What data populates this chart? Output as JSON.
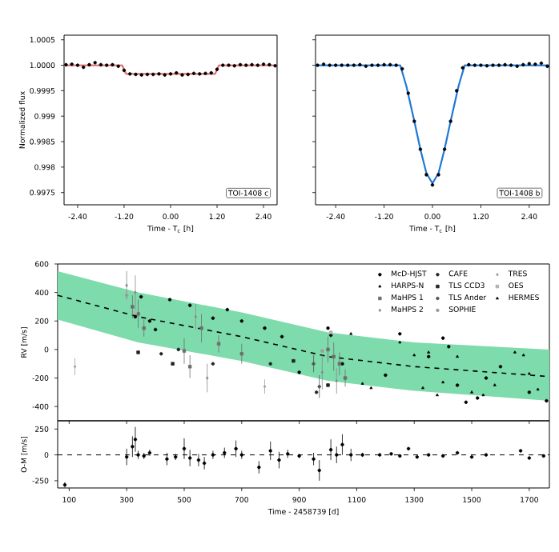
{
  "chart_data": [
    {
      "type": "scatter",
      "xlabel": "Time - T$_{c}$ [h]",
      "ylabel": "Normalized flux",
      "annotations": [
        "TOI-1408 c"
      ],
      "xlim": [
        -2.75,
        2.75
      ],
      "ylim": [
        0.99726,
        1.00059
      ],
      "xticks": [
        {
          "value": -2.4,
          "label": "-2.40"
        },
        {
          "value": -1.2,
          "label": "-1.20"
        },
        {
          "value": 0,
          "label": "0.00"
        },
        {
          "value": 1.2,
          "label": "1.20"
        },
        {
          "value": 2.4,
          "label": "2.40"
        }
      ],
      "yticks": [
        0.9975,
        0.998,
        0.9985,
        0.999,
        0.9995,
        {
          "value": 1.0,
          "label": "1.0000"
        },
        1.0005
      ],
      "series": [
        {
          "type": "scatter",
          "marker": "circle",
          "color": "#000000",
          "x": [
            -2.7,
            -2.55,
            -2.4,
            -2.25,
            -2.1,
            -1.95,
            -1.8,
            -1.65,
            -1.5,
            -1.35,
            -1.2,
            -1.05,
            -0.9,
            -0.75,
            -0.6,
            -0.45,
            -0.3,
            -0.15,
            0,
            0.15,
            0.3,
            0.45,
            0.6,
            0.75,
            0.9,
            1.05,
            1.2,
            1.35,
            1.5,
            1.65,
            1.8,
            1.95,
            2.1,
            2.25,
            2.4,
            2.55,
            2.7
          ],
          "values": [
            1.00001,
            1.00002,
            1.0,
            0.99996,
            1.00001,
            1.00005,
            1.00001,
            1.0,
            1.00001,
            0.99998,
            0.9999,
            0.99983,
            0.99982,
            0.99981,
            0.99982,
            0.99982,
            0.99983,
            0.99981,
            0.99983,
            0.99985,
            0.99981,
            0.99982,
            0.99984,
            0.99983,
            0.99984,
            0.99985,
            0.99992,
            1.0,
            1.0,
            0.99999,
            1.00001,
            1.0,
            1.00001,
            1.0,
            1.00002,
            1.00001,
            0.99999
          ]
        },
        {
          "type": "line",
          "color": "#e07272",
          "x": [
            -2.75,
            -1.25,
            -1.15,
            1.15,
            1.25,
            2.75
          ],
          "values": [
            1.0,
            1.0,
            0.99983,
            0.99983,
            1.0,
            1.0
          ]
        }
      ]
    },
    {
      "type": "scatter",
      "xlabel": "Time - T$_{c}$ [h]",
      "annotations": [
        "TOI-1408 b"
      ],
      "tick_labels": "x",
      "xlim": [
        -2.9,
        2.9
      ],
      "ylim": [
        0.99726,
        1.00059
      ],
      "xticks": [
        {
          "value": -2.4,
          "label": "-2.40"
        },
        {
          "value": -1.2,
          "label": "-1.20"
        },
        {
          "value": 0,
          "label": "0.00"
        },
        {
          "value": 1.2,
          "label": "1.20"
        },
        {
          "value": 2.4,
          "label": "2.40"
        }
      ],
      "yticks": [
        {
          "value": 0.9975,
          "label": null
        },
        {
          "value": 0.998,
          "label": null
        },
        {
          "value": 0.9985,
          "label": null
        },
        {
          "value": 0.999,
          "label": null
        },
        {
          "value": 0.9995,
          "label": null
        },
        {
          "value": 1.0,
          "label": null
        },
        {
          "value": 1.0005,
          "label": null
        }
      ],
      "series": [
        {
          "type": "scatter",
          "marker": "circle",
          "color": "#000000",
          "x": [
            -2.85,
            -2.7,
            -2.55,
            -2.4,
            -2.25,
            -2.1,
            -1.95,
            -1.8,
            -1.65,
            -1.5,
            -1.35,
            -1.2,
            -1.05,
            -0.9,
            -0.75,
            -0.6,
            -0.45,
            -0.3,
            -0.15,
            0,
            0.15,
            0.3,
            0.45,
            0.6,
            0.75,
            0.9,
            1.05,
            1.2,
            1.35,
            1.5,
            1.65,
            1.8,
            1.95,
            2.1,
            2.25,
            2.4,
            2.55,
            2.7,
            2.85
          ],
          "values": [
            1.0,
            1.00002,
            1.0,
            1.0,
            1.0,
            1.0,
            1.0,
            1.00001,
            0.99998,
            1.0,
            1.0,
            1.00001,
            1.00001,
            1.0,
            0.99993,
            0.99945,
            0.9989,
            0.99835,
            0.99785,
            0.99765,
            0.99785,
            0.99835,
            0.9989,
            0.9995,
            0.99995,
            1.00001,
            1.0,
            1.0,
            0.99999,
            1.0,
            1.0,
            1.00001,
            1.0,
            0.99998,
            1.00001,
            1.00003,
            1.00002,
            1.00004,
            0.99998
          ]
        },
        {
          "type": "line",
          "color": "#1e78d8",
          "x": [
            -2.9,
            -0.8,
            -0.65,
            -0.45,
            -0.3,
            -0.15,
            0,
            0.15,
            0.3,
            0.45,
            0.65,
            0.8,
            2.9
          ],
          "values": [
            1.0,
            1.0,
            0.9996,
            0.9989,
            0.99835,
            0.99788,
            0.99768,
            0.99788,
            0.99835,
            0.9989,
            0.9996,
            1.0,
            1.0
          ]
        }
      ]
    },
    {
      "type": "scatter",
      "ylabel": "RV [m/s]",
      "legend": "top right",
      "tick_labels": "y",
      "xlim": [
        60,
        1770
      ],
      "ylim": [
        -500,
        600
      ],
      "xticks": [
        100,
        300,
        500,
        700,
        900,
        1100,
        1300,
        1500,
        1700
      ],
      "yticks": [
        -400,
        -200,
        0,
        200,
        400,
        600
      ],
      "series": [
        {
          "type": "line",
          "line_style": "dashed",
          "color": "#000000",
          "x": [
            60,
            340,
            700,
            1000,
            1300,
            1770
          ],
          "values": [
            380,
            230,
            90,
            -50,
            -120,
            -190
          ],
          "lower": [
            210,
            50,
            -80,
            -220,
            -290,
            -360
          ],
          "upper": [
            550,
            400,
            260,
            120,
            50,
            0
          ]
        },
        {
          "name": "McD-HJST",
          "marker": "circle",
          "color": "#000000",
          "x": [
            330,
            350,
            380,
            400,
            450,
            520,
            600,
            650,
            700,
            780,
            840,
            900,
            1000,
            1010,
            1050,
            1200,
            1250,
            1350,
            1400,
            1420,
            1450,
            1480,
            1520,
            1550,
            1600,
            1700,
            1760
          ],
          "values": [
            230,
            370,
            200,
            140,
            350,
            310,
            220,
            280,
            200,
            150,
            90,
            -160,
            150,
            100,
            -100,
            -180,
            110,
            -50,
            80,
            20,
            -250,
            -370,
            -340,
            -200,
            -120,
            -300,
            -360
          ]
        },
        {
          "name": "HARPS-N",
          "marker": "triangle",
          "color": "#000000",
          "x": [
            1080,
            1120,
            1150,
            1300,
            1330,
            1380,
            1400,
            1450,
            1500,
            1540,
            1580,
            1680,
            1700
          ],
          "values": [
            110,
            -240,
            -270,
            -40,
            -270,
            -320,
            -230,
            -50,
            -300,
            -320,
            -250,
            -40,
            -170
          ]
        },
        {
          "name": "MaHPS 1",
          "marker": "square",
          "color": "#6e6e6e",
          "x": [
            320,
            340,
            360,
            500,
            520,
            560,
            620,
            700,
            1000,
            1020,
            1040,
            1060
          ],
          "values": [
            300,
            250,
            150,
            -10,
            -120,
            150,
            40,
            -30,
            0,
            -50,
            -100,
            -200
          ],
          "errors": [
            80,
            100,
            60,
            90,
            80,
            100,
            60,
            70,
            90,
            100,
            80,
            60
          ]
        },
        {
          "name": "MaHPS 2",
          "marker": "diamond",
          "color": "#8a8a8a",
          "x": [
            300,
            330,
            540,
            580,
            980,
            1030
          ],
          "values": [
            450,
            400,
            230,
            -200,
            -160,
            -220
          ],
          "errors": [
            100,
            120,
            90,
            100,
            120,
            90
          ]
        },
        {
          "name": "CAFE",
          "marker": "circle",
          "color": "#222222",
          "x": [
            420,
            480,
            600,
            800,
            960
          ],
          "values": [
            -30,
            0,
            -100,
            -100,
            -300
          ]
        },
        {
          "name": "TLS CCD3",
          "marker": "square",
          "color": "#222222",
          "x": [
            340,
            460,
            880,
            1000
          ],
          "values": [
            -20,
            -100,
            -80,
            -250
          ]
        },
        {
          "name": "TLS Ander",
          "marker": "circle",
          "color": "#555555",
          "x": [
            950,
            970
          ],
          "values": [
            -100,
            -260
          ],
          "errors": [
            60,
            80
          ]
        },
        {
          "name": "SOPHIE",
          "marker": "circle",
          "color": "#9a9a9a",
          "x": [
            300,
            980
          ],
          "values": [
            380,
            -10
          ]
        },
        {
          "name": "TRES",
          "marker": "diamond",
          "color": "#a0a0a0",
          "x": [
            120,
            780
          ],
          "values": [
            -120,
            -260
          ],
          "errors": [
            60,
            50
          ]
        },
        {
          "name": "OES",
          "marker": "square",
          "color": "#b0b0b0",
          "x": [
            330,
            1010
          ],
          "values": [
            260,
            120
          ]
        },
        {
          "name": "HERMES",
          "marker": "triangle",
          "color": "#000000",
          "x": [
            1250,
            1350,
            1650,
            1730
          ],
          "values": [
            50,
            -20,
            -20,
            -280
          ]
        }
      ]
    },
    {
      "type": "scatter",
      "xlabel": "Time - 2458739 [d]",
      "ylabel": "O-M [m/s]",
      "xlim": [
        60,
        1770
      ],
      "ylim": [
        -320,
        330
      ],
      "xticks": [
        100,
        300,
        500,
        700,
        900,
        1100,
        1300,
        1500,
        1700
      ],
      "yticks": [
        -250,
        0,
        250
      ],
      "ref_lines": [
        {
          "axis": "y",
          "value": 0,
          "line_style": "dashed"
        }
      ],
      "series": [
        {
          "type": "scatter",
          "marker": "circle",
          "color": "#000000",
          "x": [
            85,
            300,
            320,
            330,
            340,
            360,
            380,
            440,
            470,
            500,
            520,
            550,
            570,
            600,
            640,
            680,
            700,
            760,
            800,
            830,
            860,
            900,
            950,
            970,
            1010,
            1030,
            1050,
            1080,
            1120,
            1180,
            1220,
            1250,
            1280,
            1310,
            1350,
            1400,
            1450,
            1500,
            1550,
            1670,
            1700,
            1750
          ],
          "values": [
            -290,
            -20,
            80,
            150,
            0,
            -10,
            20,
            -40,
            -20,
            60,
            -30,
            -50,
            -80,
            0,
            20,
            60,
            0,
            -120,
            40,
            -50,
            10,
            -10,
            -40,
            -150,
            50,
            0,
            100,
            0,
            0,
            0,
            10,
            -10,
            60,
            -20,
            0,
            -10,
            20,
            -20,
            0,
            40,
            -30,
            -10
          ],
          "errors": [
            25,
            80,
            100,
            120,
            40,
            30,
            30,
            60,
            30,
            100,
            80,
            60,
            60,
            40,
            50,
            80,
            40,
            60,
            90,
            80,
            40,
            20,
            60,
            100,
            100,
            80,
            100,
            60,
            20,
            null,
            null,
            null,
            null,
            null,
            null,
            null,
            null,
            null,
            null,
            null,
            null,
            null
          ]
        }
      ]
    }
  ]
}
